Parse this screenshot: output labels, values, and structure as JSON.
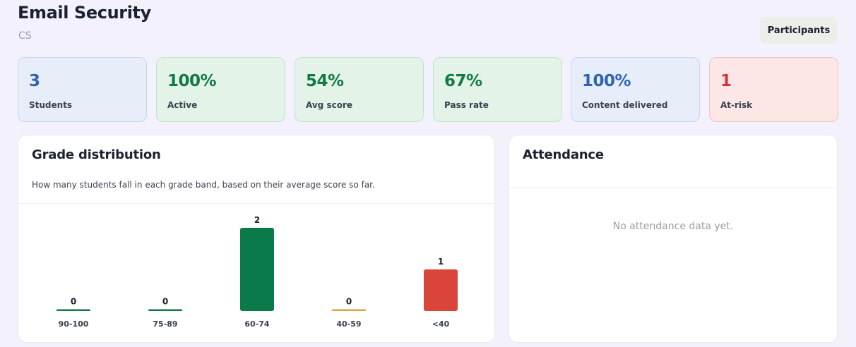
{
  "header": {
    "title": "Email Security",
    "subtitle": "CS",
    "participants_label": "Participants"
  },
  "stats": [
    {
      "value": "3",
      "label": "Students",
      "tone": "blue"
    },
    {
      "value": "100%",
      "label": "Active",
      "tone": "green"
    },
    {
      "value": "54%",
      "label": "Avg score",
      "tone": "green"
    },
    {
      "value": "67%",
      "label": "Pass rate",
      "tone": "green"
    },
    {
      "value": "100%",
      "label": "Content delivered",
      "tone": "blue"
    },
    {
      "value": "1",
      "label": "At-risk",
      "tone": "red"
    }
  ],
  "grade_distribution": {
    "title": "Grade distribution",
    "description": "How many students fall in each grade band, based on their average score so far."
  },
  "attendance": {
    "title": "Attendance",
    "empty_message": "No attendance data yet."
  },
  "colors": {
    "band_90_100": "#137a45",
    "band_75_89": "#137a45",
    "band_60_74": "#0a7a4a",
    "band_40_59": "#e0a23a",
    "band_lt_40": "#d9453b"
  },
  "chart_data": {
    "type": "bar",
    "title": "Grade distribution",
    "categories": [
      "90-100",
      "75-89",
      "60-74",
      "40-59",
      "<40"
    ],
    "values": [
      0,
      0,
      2,
      0,
      1
    ],
    "colors": [
      "#137a45",
      "#137a45",
      "#0a7a4a",
      "#e0a23a",
      "#d9453b"
    ],
    "ylim": [
      0,
      2
    ],
    "grid": false,
    "legend": "none"
  }
}
